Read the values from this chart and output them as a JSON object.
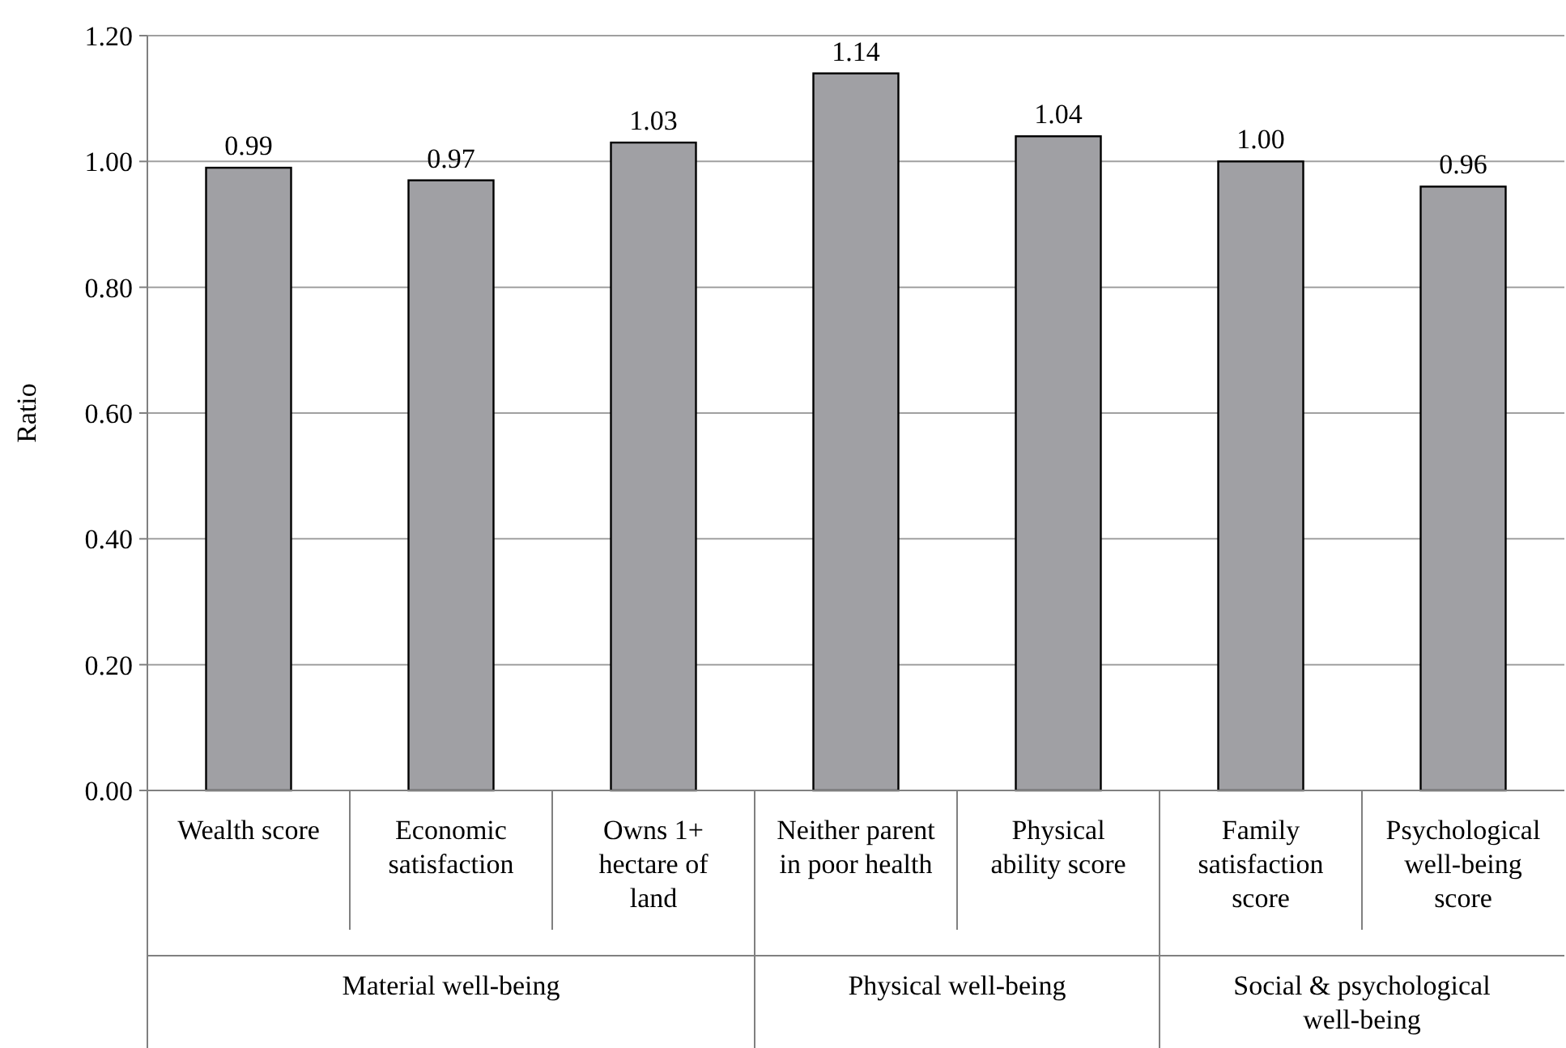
{
  "chart_data": {
    "type": "bar",
    "ylabel": "Ratio",
    "categories": [
      "Wealth score",
      "Economic satisfaction",
      "Owns 1+ hectare of land",
      "Neither parent in poor health",
      "Physical ability score",
      "Family satisfaction score",
      "Psychological well-being score"
    ],
    "values": [
      0.99,
      0.97,
      1.03,
      1.14,
      1.04,
      1.0,
      0.96
    ],
    "value_labels": [
      "0.99",
      "0.97",
      "1.03",
      "1.14",
      "1.04",
      "1.00",
      "0.96"
    ],
    "color": "#a0a0a4",
    "ylim": [
      0,
      1.2
    ],
    "yticks": [
      {
        "value": 0,
        "label": "0.00"
      },
      {
        "value": 0.2,
        "label": "0.20"
      },
      {
        "value": 0.4,
        "label": "0.40"
      },
      {
        "value": 0.6,
        "label": "0.60"
      },
      {
        "value": 0.8,
        "label": "0.80"
      },
      {
        "value": 1,
        "label": "1.00"
      },
      {
        "value": 1.2,
        "label": "1.20"
      }
    ],
    "grid": "y",
    "annotations": [
      "Material well-being",
      "Physical well-being",
      "Social & psychological well-being"
    ]
  }
}
